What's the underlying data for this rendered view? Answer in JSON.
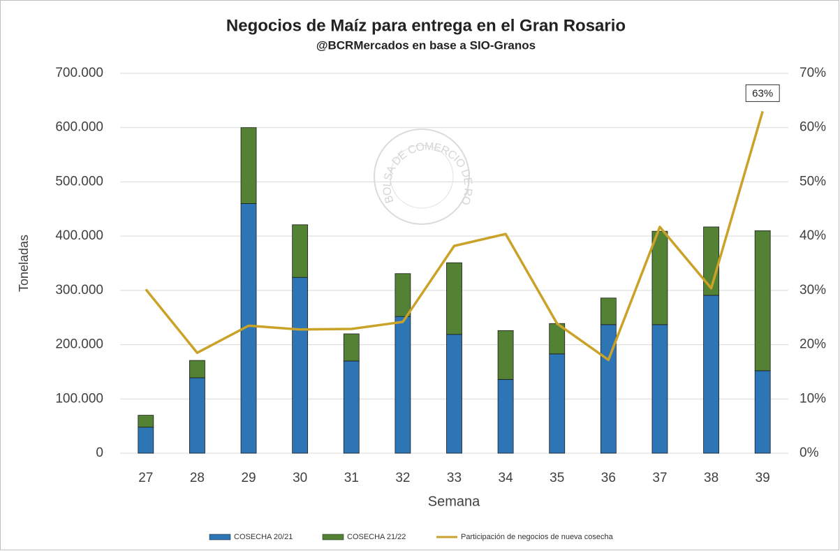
{
  "chart_data": {
    "type": "bar-line",
    "title": "Negocios de Maíz para entrega en el Gran Rosario",
    "subtitle": "@BCRMercados en base a SIO-Granos",
    "watermark": "BOLSA DE COMERCIO DE ROSARIO",
    "x_label": "Semana",
    "y_label": "Toneladas",
    "categories": [
      "27",
      "28",
      "29",
      "30",
      "31",
      "32",
      "33",
      "34",
      "35",
      "36",
      "37",
      "38",
      "39"
    ],
    "series": [
      {
        "name": "COSECHA 20/21",
        "color": "#2e75b6",
        "kind": "bar",
        "values": [
          48000,
          139000,
          460000,
          324000,
          170000,
          252000,
          219000,
          136000,
          183000,
          237000,
          237000,
          291000,
          152000
        ]
      },
      {
        "name": "COSECHA 21/22",
        "color": "#548235",
        "kind": "bar",
        "values": [
          22000,
          32000,
          140000,
          97000,
          50000,
          79000,
          132000,
          90000,
          56000,
          49000,
          172000,
          126000,
          258000
        ]
      },
      {
        "name": "Participación de negocios de nueva cosecha",
        "color": "#c9a227",
        "kind": "line",
        "axis": "y2",
        "values": [
          30.2,
          18.5,
          23.5,
          22.8,
          22.9,
          24.2,
          38.2,
          40.4,
          23.9,
          17.2,
          41.7,
          30.4,
          63
        ],
        "value_labels": [
          null,
          null,
          null,
          null,
          null,
          null,
          null,
          null,
          null,
          null,
          null,
          null,
          "63%"
        ]
      }
    ],
    "ylim": [
      0,
      700000
    ],
    "yticks": [
      0,
      {
        "value": 100000,
        "label": "100.000"
      },
      {
        "value": 200000,
        "label": "200.000"
      },
      {
        "value": 300000,
        "label": "300.000"
      },
      {
        "value": 400000,
        "label": "400.000"
      },
      {
        "value": 500000,
        "label": "500.000"
      },
      {
        "value": 600000,
        "label": "600.000"
      },
      {
        "value": 700000,
        "label": "700.000"
      }
    ],
    "y2lim": [
      0,
      70
    ],
    "y2ticks": [
      {
        "value": 0,
        "label": "0%"
      },
      {
        "value": 10,
        "label": "10%"
      },
      {
        "value": 20,
        "label": "20%"
      },
      {
        "value": 30,
        "label": "30%"
      },
      {
        "value": 40,
        "label": "40%"
      },
      {
        "value": 50,
        "label": "50%"
      },
      {
        "value": 60,
        "label": "60%"
      },
      {
        "value": 70,
        "label": "70%"
      }
    ],
    "grid": true,
    "legend": "bottom"
  }
}
